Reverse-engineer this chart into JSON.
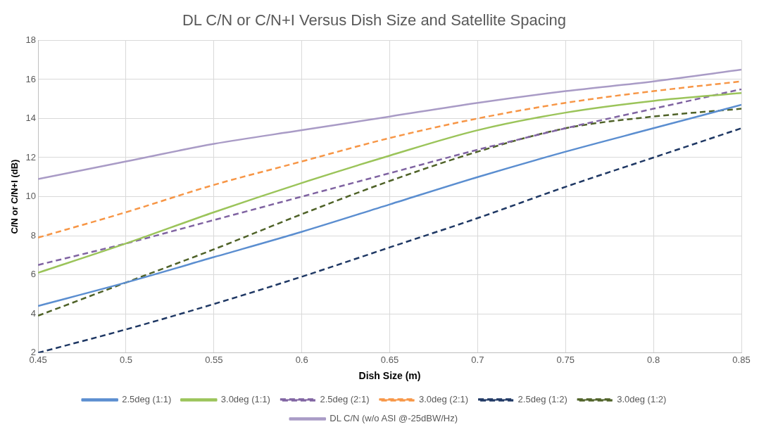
{
  "chart_data": {
    "type": "line",
    "title": "DL C/N or C/N+I Versus Dish Size and Satellite Spacing",
    "xlabel": "Dish Size (m)",
    "ylabel": "C/N or C/N+I (dB)",
    "x": [
      0.45,
      0.5,
      0.55,
      0.6,
      0.65,
      0.7,
      0.75,
      0.8,
      0.85
    ],
    "xlim": [
      0.45,
      0.85
    ],
    "xticks": [
      {
        "value": 0.45,
        "label": "0.45"
      },
      {
        "value": 0.5,
        "label": "0.5"
      },
      {
        "value": 0.55,
        "label": "0.55"
      },
      {
        "value": 0.6,
        "label": "0.6"
      },
      {
        "value": 0.65,
        "label": "0.65"
      },
      {
        "value": 0.7,
        "label": "0.7"
      },
      {
        "value": 0.75,
        "label": "0.75"
      },
      {
        "value": 0.8,
        "label": "0.8"
      },
      {
        "value": 0.85,
        "label": "0.85"
      }
    ],
    "ylim": [
      2,
      18
    ],
    "yticks": [
      2,
      4,
      6,
      8,
      10,
      12,
      14,
      16,
      18
    ],
    "grid": true,
    "legend": "bottom",
    "marker": "none",
    "series": [
      {
        "name": "2.5deg (1:1)",
        "color": "#5b8ed0",
        "line_style": "solid",
        "values": [
          4.4,
          5.6,
          6.9,
          8.2,
          9.6,
          11.0,
          12.3,
          13.5,
          14.7
        ]
      },
      {
        "name": "3.0deg (1:1)",
        "color": "#9bc45a",
        "line_style": "solid",
        "values": [
          6.1,
          7.6,
          9.2,
          10.7,
          12.1,
          13.4,
          14.3,
          14.9,
          15.3
        ]
      },
      {
        "name": "2.5deg (2:1)",
        "color": "#8064a2",
        "line_style": "dashed",
        "values": [
          6.5,
          7.6,
          8.8,
          10.0,
          11.2,
          12.4,
          13.5,
          14.5,
          15.5
        ]
      },
      {
        "name": "3.0deg (2:1)",
        "color": "#f79646",
        "line_style": "dashed",
        "values": [
          7.9,
          9.2,
          10.6,
          11.8,
          13.0,
          14.0,
          14.8,
          15.4,
          15.9
        ]
      },
      {
        "name": "2.5deg (1:2)",
        "color": "#1f3864",
        "line_style": "dashed",
        "values": [
          2.0,
          3.2,
          4.5,
          5.9,
          7.4,
          8.9,
          10.5,
          12.0,
          13.5
        ]
      },
      {
        "name": "3.0deg (1:2)",
        "color": "#4f6228",
        "line_style": "dashed",
        "values": [
          3.9,
          5.6,
          7.3,
          9.1,
          10.8,
          12.3,
          13.5,
          14.1,
          14.5
        ]
      },
      {
        "name": "DL C/N (w/o ASI @-25dBW/Hz)",
        "color": "#a99bc6",
        "line_style": "solid",
        "values": [
          10.9,
          11.8,
          12.7,
          13.4,
          14.1,
          14.8,
          15.4,
          15.9,
          16.5
        ]
      }
    ]
  }
}
